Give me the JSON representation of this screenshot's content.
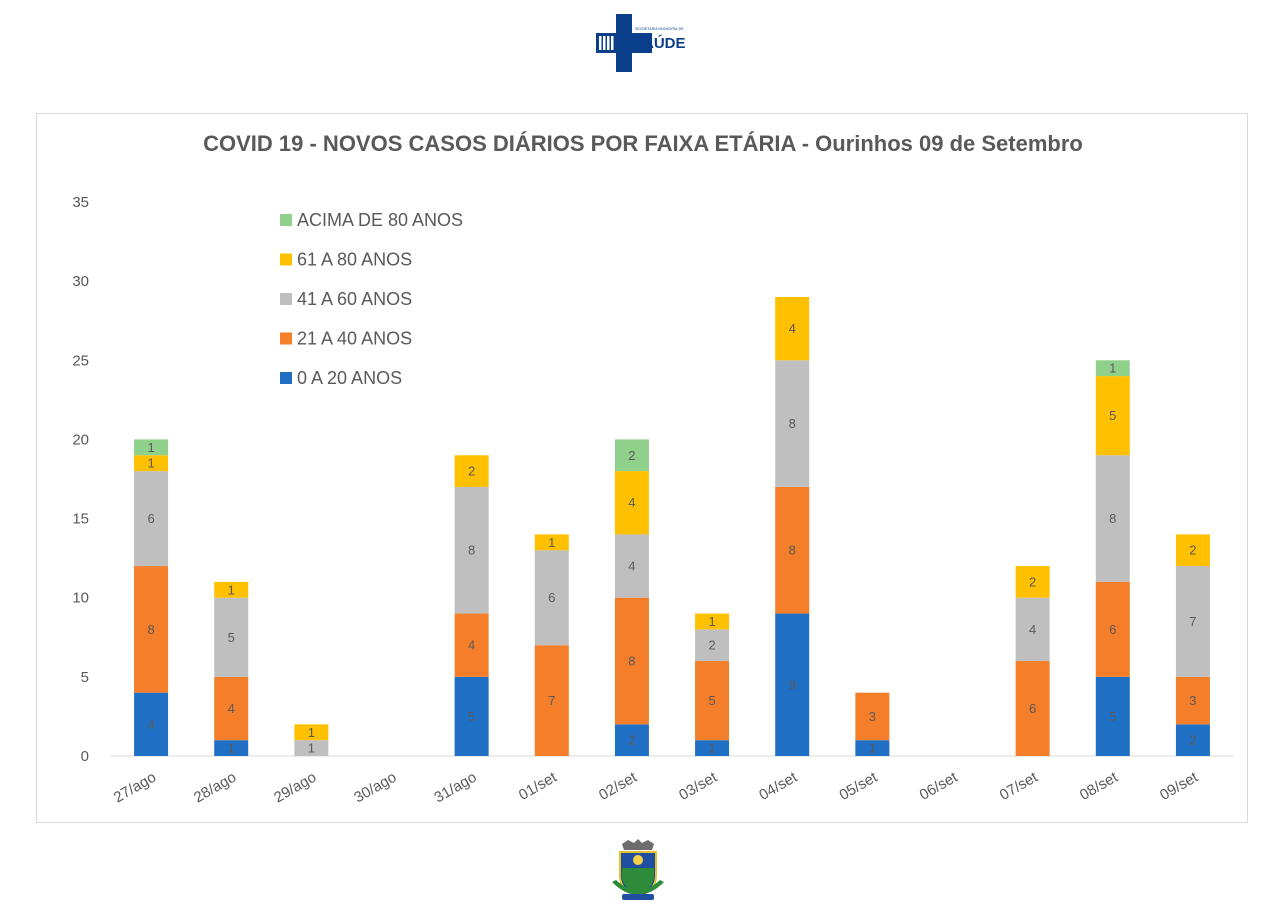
{
  "header": {
    "logo_small_text": "SECRETARIA MUNICIPAL DE",
    "logo_text": "SAÚDE"
  },
  "colors": {
    "0 A 20 ANOS": "#1f6fc5",
    "21 A 40 ANOS": "#f57e2b",
    "41 A 60 ANOS": "#bfbfbf",
    "61 A 80 ANOS": "#ffc000",
    "ACIMA DE 80 ANOS": "#8fd18a",
    "brand_blue": "#0b3f8c"
  },
  "chart_data": {
    "type": "bar",
    "stacked": true,
    "title": "COVID 19 - NOVOS CASOS DIÁRIOS POR FAIXA ETÁRIA - Ourinhos 09 de Setembro",
    "xlabel": "",
    "ylabel": "",
    "ylim": [
      0,
      35
    ],
    "yticks": [
      0,
      5,
      10,
      15,
      20,
      25,
      30,
      35
    ],
    "grid": false,
    "legend_position": "top-left",
    "categories": [
      "27/ago",
      "28/ago",
      "29/ago",
      "30/ago",
      "31/ago",
      "01/set",
      "02/set",
      "03/set",
      "04/set",
      "05/set",
      "06/set",
      "07/set",
      "08/set",
      "09/set"
    ],
    "series": [
      {
        "name": "0 A 20 ANOS",
        "values": [
          4,
          1,
          0,
          0,
          5,
          0,
          2,
          1,
          9,
          1,
          0,
          0,
          5,
          2
        ]
      },
      {
        "name": "21 A 40 ANOS",
        "values": [
          8,
          4,
          0,
          0,
          4,
          7,
          8,
          5,
          8,
          3,
          0,
          6,
          6,
          3
        ]
      },
      {
        "name": "41 A 60 ANOS",
        "values": [
          6,
          5,
          1,
          0,
          8,
          6,
          4,
          2,
          8,
          0,
          0,
          4,
          8,
          7
        ]
      },
      {
        "name": "61 A 80 ANOS",
        "values": [
          1,
          1,
          1,
          0,
          2,
          1,
          4,
          1,
          4,
          0,
          0,
          2,
          5,
          2
        ]
      },
      {
        "name": "ACIMA DE 80 ANOS",
        "values": [
          1,
          0,
          0,
          0,
          0,
          0,
          2,
          0,
          0,
          0,
          0,
          0,
          1,
          0
        ]
      }
    ]
  }
}
